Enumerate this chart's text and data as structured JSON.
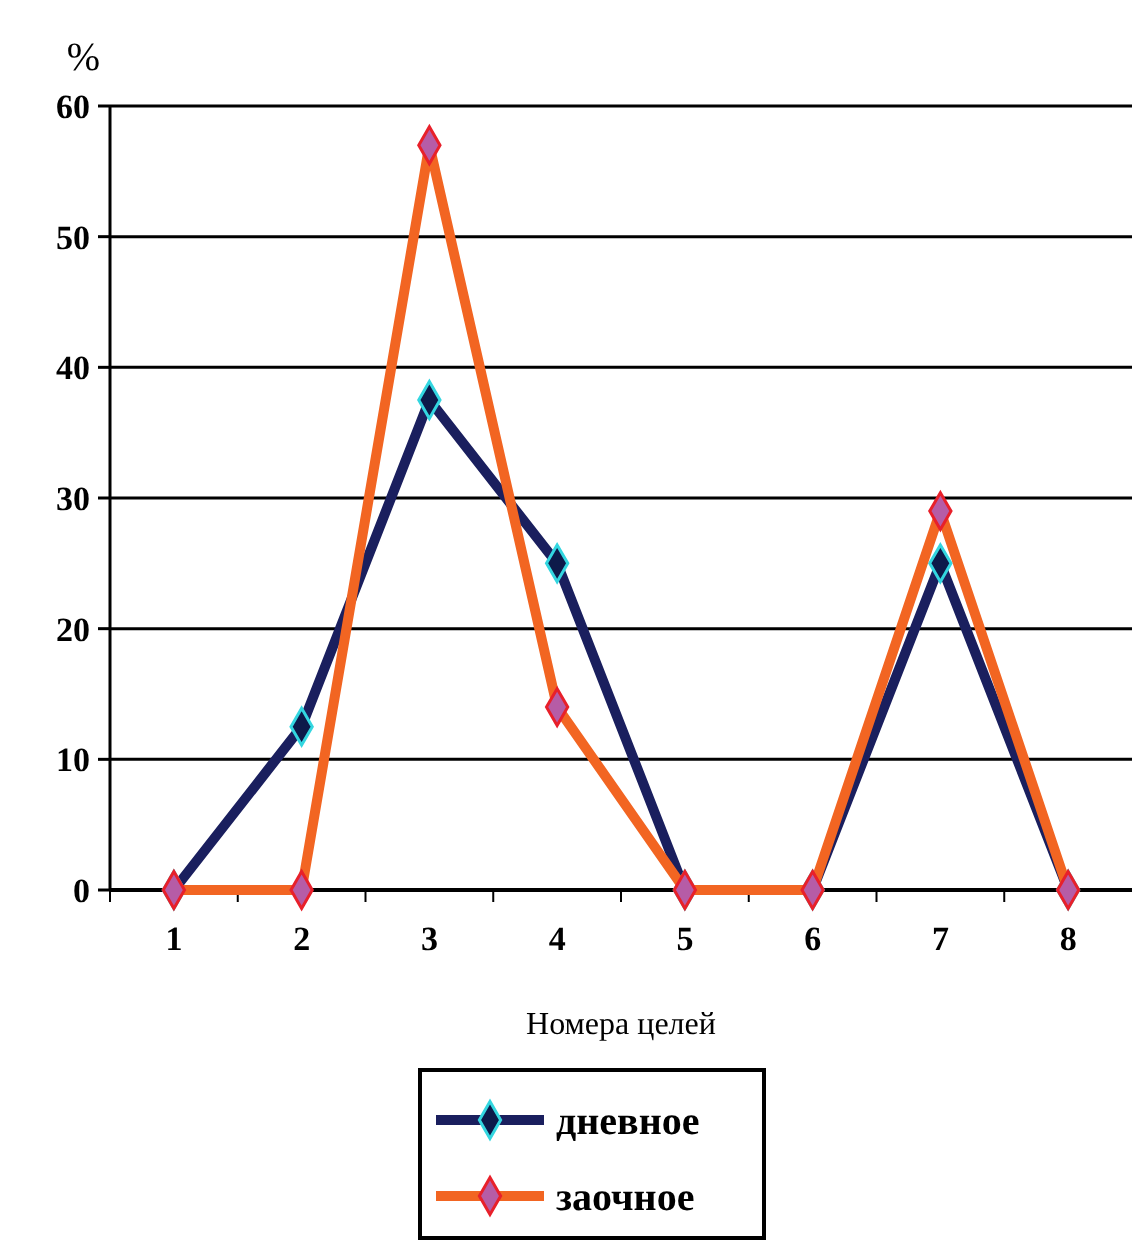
{
  "chart_data": {
    "type": "line",
    "xlabel": "Номера целей",
    "ylabel": "%",
    "categories": [
      "1",
      "2",
      "3",
      "4",
      "5",
      "6",
      "7",
      "8"
    ],
    "series": [
      {
        "name": "дневное",
        "color": "#1a1f5e",
        "values": [
          0,
          12.5,
          37.5,
          25,
          0,
          0,
          25,
          0
        ]
      },
      {
        "name": "заочное",
        "color": "#f26522",
        "values": [
          0,
          0,
          57,
          14,
          0,
          0,
          29,
          0
        ]
      }
    ],
    "ylim": [
      0,
      60
    ],
    "yticks": [
      0,
      10,
      20,
      30,
      40,
      50,
      60
    ],
    "grid": "y",
    "legend": "bottom",
    "marker": "diamond",
    "line_style": "solid"
  }
}
